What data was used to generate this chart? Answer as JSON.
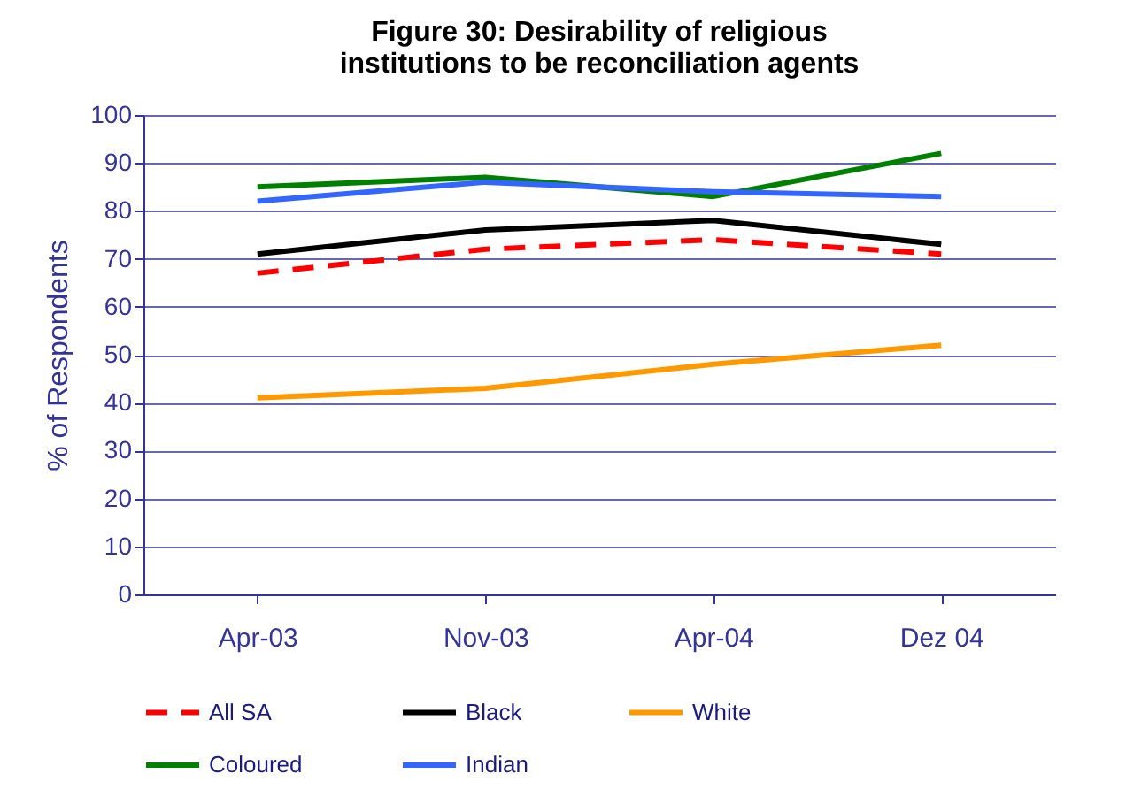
{
  "chart_data": {
    "type": "line",
    "title": "Figure 30: Desirability of religious institutions to be reconciliation agents",
    "ylabel": "% of Respondents",
    "categories": [
      "Apr-03",
      "Nov-03",
      "Apr-04",
      "Dez 04"
    ],
    "series": [
      {
        "name": "All SA",
        "color": "#ff0000",
        "line_style": "dashed",
        "values": [
          67,
          72,
          74,
          71
        ]
      },
      {
        "name": "Black",
        "color": "#000000",
        "values": [
          71,
          76,
          78,
          73
        ]
      },
      {
        "name": "White",
        "color": "#ff9900",
        "values": [
          41,
          43,
          48,
          52
        ]
      },
      {
        "name": "Coloured",
        "color": "#008000",
        "values": [
          85,
          87,
          83,
          92
        ]
      },
      {
        "name": "Indian",
        "color": "#3366ff",
        "values": [
          82,
          86,
          84,
          83
        ]
      }
    ],
    "ylim": [
      0,
      100
    ],
    "yticks": [
      0,
      10,
      20,
      30,
      40,
      50,
      60,
      70,
      80,
      90,
      100
    ],
    "grid": "y",
    "legend": "bottom",
    "line_style": "solid",
    "marker": "none"
  }
}
